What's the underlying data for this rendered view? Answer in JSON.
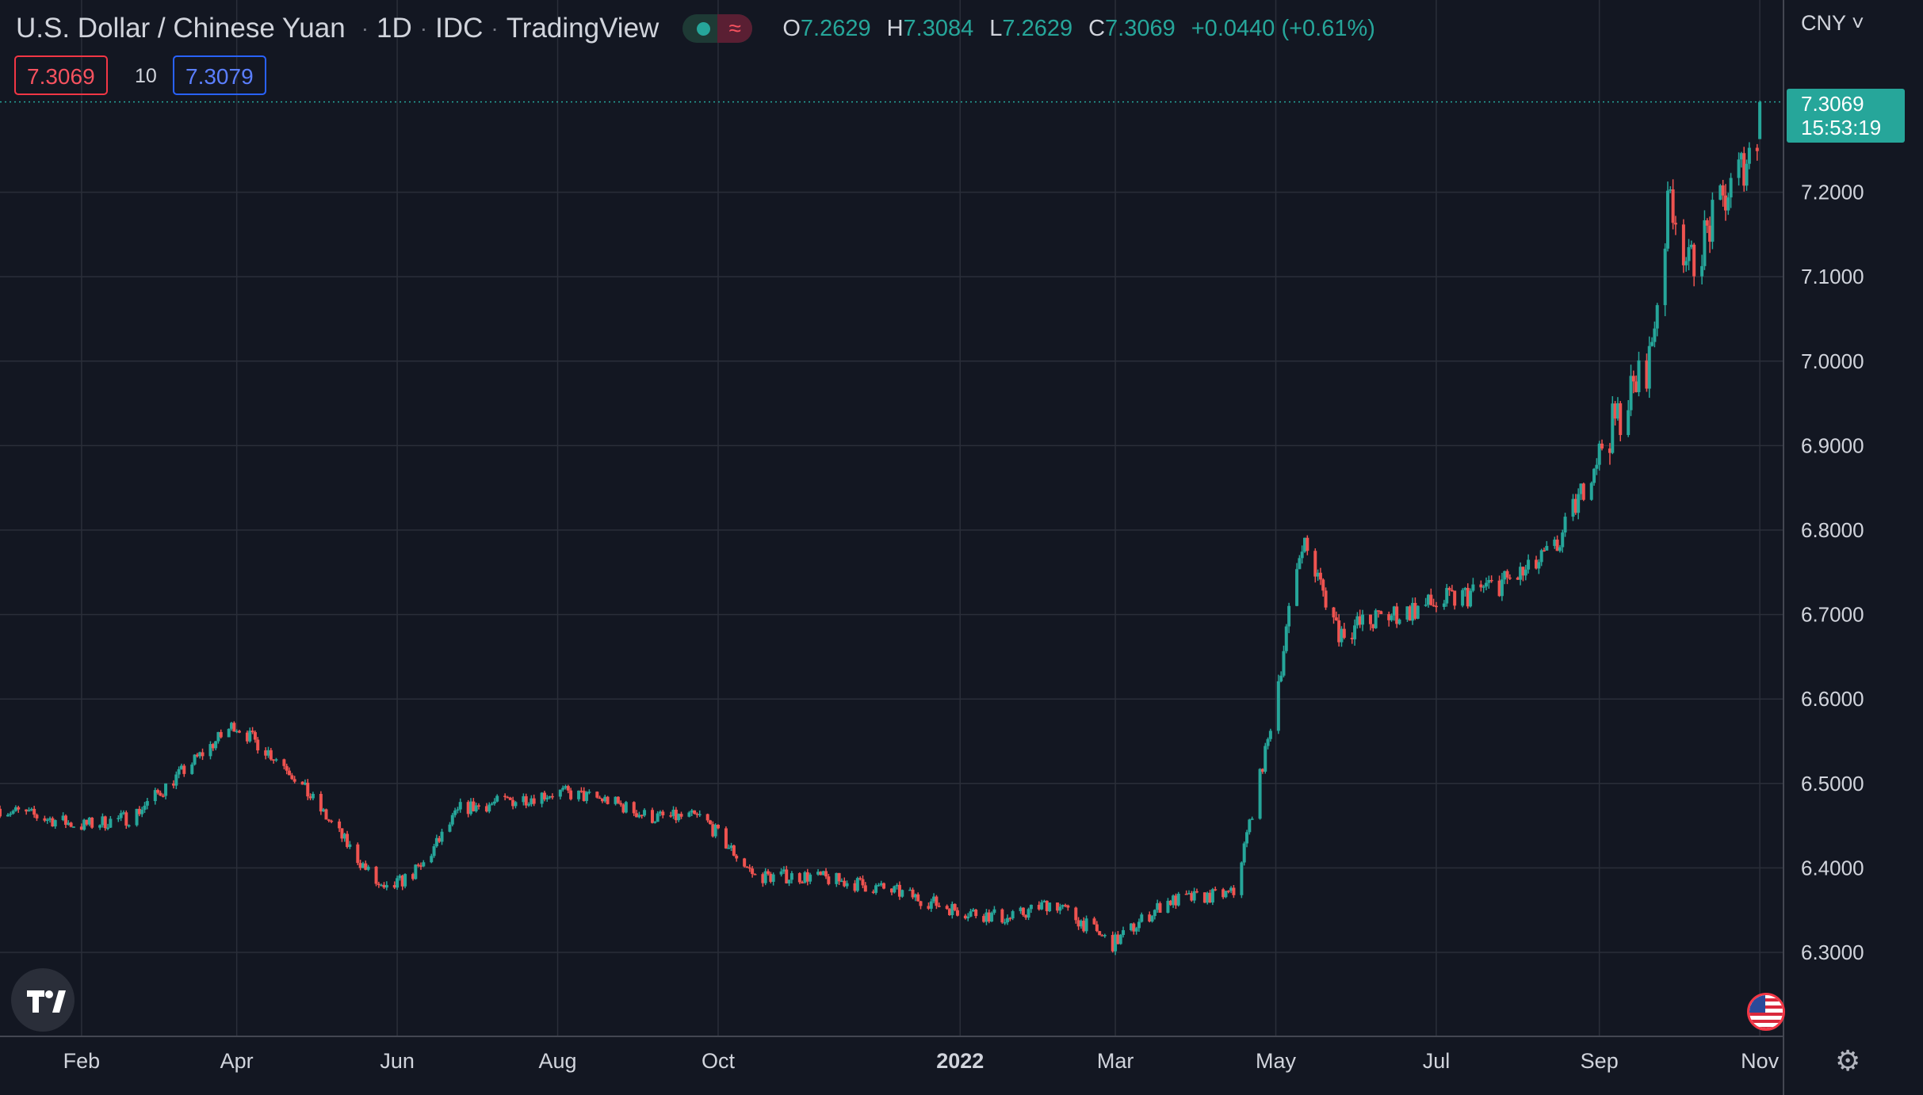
{
  "header": {
    "title": "U.S. Dollar / Chinese Yuan",
    "interval": "1D",
    "source": "IDC",
    "platform": "TradingView",
    "ohlc": {
      "o_label": "O",
      "o": "7.2629",
      "h_label": "H",
      "h": "7.3084",
      "l_label": "L",
      "l": "7.2629",
      "c_label": "C",
      "c": "7.3069",
      "change": "+0.0440 (+0.61%)"
    },
    "bid": "7.3069",
    "quantity": "10",
    "ask": "7.3079",
    "currency": "CNY"
  },
  "price_tag": {
    "price": "7.3069",
    "countdown": "15:53:19"
  },
  "colors": {
    "background": "#131722",
    "grid": "#2a2e39",
    "up": "#26a69a",
    "down": "#ef5350",
    "text": "#d1d4dc"
  },
  "icons": {
    "logo": "tradingview-logo-icon",
    "flag": "us-flag-icon",
    "settings": "gear-icon",
    "dropdown": "chevron-down-icon"
  },
  "chart_data": {
    "type": "candlestick",
    "y_ticks": [
      "6.3000",
      "6.4000",
      "6.5000",
      "6.6000",
      "6.7000",
      "6.8000",
      "6.9000",
      "7.0000",
      "7.1000",
      "7.2000"
    ],
    "ylim": [
      6.2,
      7.32
    ],
    "x_ticks": [
      "Feb",
      "Apr",
      "Jun",
      "Aug",
      "Oct",
      "2022",
      "Mar",
      "May",
      "Jul",
      "Sep",
      "Nov"
    ],
    "xlim": [
      "2021-01-01",
      "2022-11-10"
    ],
    "grid": true,
    "last_price": 7.3069,
    "anchors": [
      [
        "2021-01-01",
        6.47
      ],
      [
        "2021-02-01",
        6.45
      ],
      [
        "2021-02-20",
        6.46
      ],
      [
        "2021-03-10",
        6.51
      ],
      [
        "2021-03-31",
        6.57
      ],
      [
        "2021-04-20",
        6.52
      ],
      [
        "2021-05-10",
        6.44
      ],
      [
        "2021-05-27",
        6.37
      ],
      [
        "2021-06-10",
        6.4
      ],
      [
        "2021-06-25",
        6.47
      ],
      [
        "2021-07-15",
        6.48
      ],
      [
        "2021-08-01",
        6.49
      ],
      [
        "2021-08-20",
        6.48
      ],
      [
        "2021-09-05",
        6.46
      ],
      [
        "2021-09-25",
        6.46
      ],
      [
        "2021-10-15",
        6.39
      ],
      [
        "2021-11-05",
        6.39
      ],
      [
        "2021-11-25",
        6.38
      ],
      [
        "2021-12-10",
        6.37
      ],
      [
        "2021-12-31",
        6.35
      ],
      [
        "2022-01-20",
        6.34
      ],
      [
        "2022-02-05",
        6.36
      ],
      [
        "2022-02-28",
        6.31
      ],
      [
        "2022-03-20",
        6.36
      ],
      [
        "2022-04-15",
        6.37
      ],
      [
        "2022-04-28",
        6.55
      ],
      [
        "2022-05-11",
        6.79
      ],
      [
        "2022-05-25",
        6.68
      ],
      [
        "2022-06-15",
        6.7
      ],
      [
        "2022-07-10",
        6.72
      ],
      [
        "2022-08-05",
        6.75
      ],
      [
        "2022-08-16",
        6.78
      ],
      [
        "2022-09-02",
        6.9
      ],
      [
        "2022-09-20",
        7.0
      ],
      [
        "2022-09-28",
        7.2
      ],
      [
        "2022-10-05",
        7.11
      ],
      [
        "2022-10-20",
        7.2
      ],
      [
        "2022-10-31",
        7.2629
      ]
    ],
    "last_candle": {
      "date": "2022-11-01",
      "open": 7.2629,
      "high": 7.3084,
      "low": 7.2629,
      "close": 7.3069
    }
  }
}
